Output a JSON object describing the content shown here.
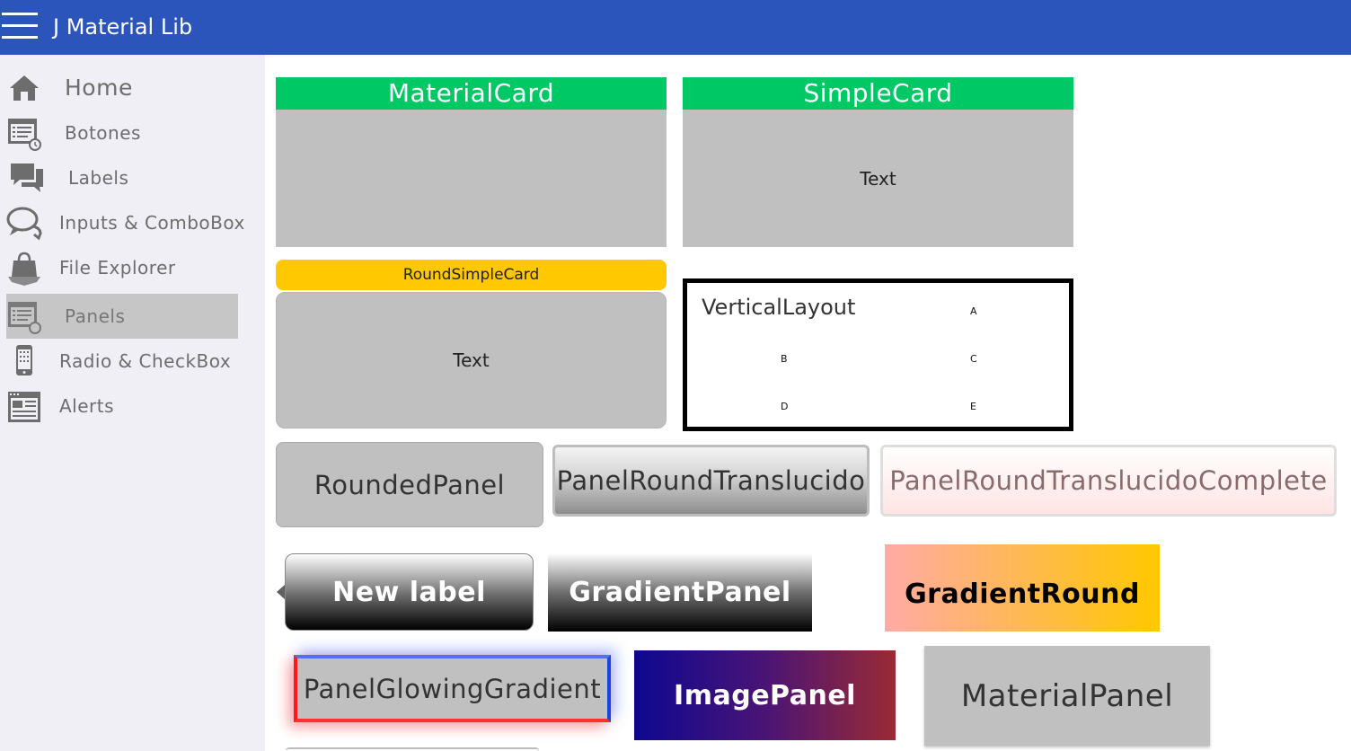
{
  "app": {
    "title": "J Material Lib"
  },
  "sidebar": {
    "items": [
      {
        "label": "Home",
        "icon": "home-icon"
      },
      {
        "label": "Botones",
        "icon": "button-window-icon"
      },
      {
        "label": "Labels",
        "icon": "chat-icon"
      },
      {
        "label": "Inputs & ComboBox",
        "icon": "speech-bubbles-icon"
      },
      {
        "label": "File Explorer",
        "icon": "bag-icon"
      },
      {
        "label": "Panels",
        "icon": "panel-window-icon",
        "active": true
      },
      {
        "label": "Radio & CheckBox",
        "icon": "phone-icon"
      },
      {
        "label": "Alerts",
        "icon": "newspaper-icon"
      }
    ]
  },
  "main": {
    "material_card": {
      "title": "MaterialCard"
    },
    "simple_card": {
      "title": "SimpleCard",
      "text": "Text"
    },
    "round_simple_card": {
      "title": "RoundSimpleCard",
      "text": "Text"
    },
    "vertical_layout": {
      "title": "VerticalLayout",
      "letters": [
        "A",
        "B",
        "C",
        "D",
        "E"
      ]
    },
    "rounded_panel": {
      "label": "RoundedPanel"
    },
    "panel_round_translucido": {
      "label": "PanelRoundTranslucido"
    },
    "panel_round_translucido_complete": {
      "label": "PanelRoundTranslucidoComplete"
    },
    "new_label": {
      "label": "New label"
    },
    "gradient_panel": {
      "label": "GradientPanel"
    },
    "gradient_round": {
      "label": "GradientRound"
    },
    "panel_glowing_gradient": {
      "label": "PanelGlowingGradient"
    },
    "image_panel": {
      "label": "ImagePanel"
    },
    "material_panel": {
      "label": "MaterialPanel"
    }
  },
  "colors": {
    "topbar": "#2c55bb",
    "card_header": "#00c865",
    "round_header": "#ffc800",
    "sidebar_bg": "#f0eff5",
    "active_item": "#c6c6c6"
  }
}
